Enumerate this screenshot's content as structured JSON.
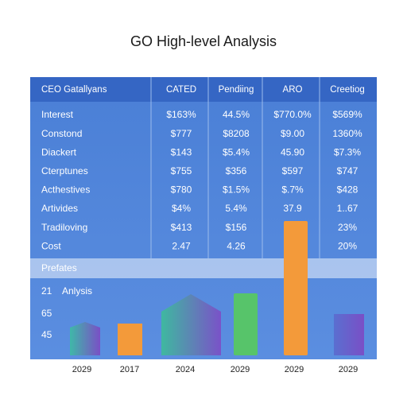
{
  "header": {
    "title": "GO High-level Analysis"
  },
  "table": {
    "columns": [
      "CEO Gatallyans",
      "CATED",
      "Pendiing",
      "ARO",
      "Creetiog"
    ],
    "rows": [
      [
        "Interest",
        "$163%",
        "44.5%",
        "$770.0%",
        "$569%"
      ],
      [
        "Constond",
        "$777",
        "$8208",
        "$9.00",
        "1360%"
      ],
      [
        "Diackert",
        "$143",
        "$5.4%",
        "45.90",
        "$7.3%"
      ],
      [
        "Cterptunes",
        "$755",
        "$356",
        "$597",
        "$747"
      ],
      [
        "Acthestives",
        "$780",
        "$1.5%",
        "$.7%",
        "$428"
      ],
      [
        "Artivides",
        "$4%",
        "5.4%",
        "37.9",
        "1..67"
      ],
      [
        "Tradiloving",
        "$413",
        "$156",
        null,
        "23%"
      ],
      [
        "Cost",
        "2.47",
        "4.26",
        null,
        "20%"
      ]
    ]
  },
  "section": {
    "label": "Prefates"
  },
  "chart": {
    "labels": [
      "21",
      "Anlysis",
      "65",
      "45"
    ],
    "categories": [
      "2029",
      "2017",
      "2024",
      "2029",
      "2029",
      "2029"
    ]
  }
}
